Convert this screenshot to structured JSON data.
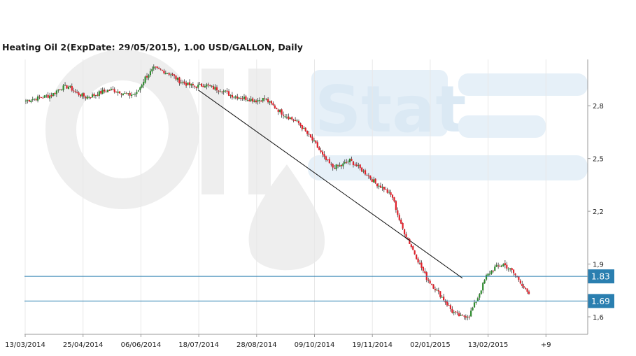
{
  "chart_data": {
    "type": "candlestick",
    "title": "Heating Oil 2(ExpDate: 29/05/2015), 1.00 USD/GALLON, Daily",
    "watermark": "OilStat",
    "colors": {
      "up": "#2e8b2e",
      "down": "#e0202a",
      "levels": "#2a7fb0",
      "level_badge": "#2a7fb0",
      "trendline": "#111111",
      "grid": "#e8e8e8"
    },
    "x_tick_labels": [
      "13/03/2014",
      "25/04/2014",
      "06/06/2014",
      "18/07/2014",
      "28/08/2014",
      "09/10/2014",
      "19/11/2014",
      "02/01/2015",
      "13/02/2015",
      "+9"
    ],
    "y_ticks": [
      1.6,
      1.9,
      2.2,
      2.5,
      2.8
    ],
    "y_tick_labels": [
      "1,6",
      "1,9",
      "2,2",
      "2,5",
      "2,8"
    ],
    "ylim": [
      1.55,
      3.05
    ],
    "horizontal_levels": [
      {
        "value": 1.83,
        "label": "1.83"
      },
      {
        "value": 1.69,
        "label": "1.69"
      }
    ],
    "trendline": {
      "start": {
        "bar_index": 101,
        "value": 2.89
      },
      "end": {
        "bar_index": 256,
        "value": 1.82
      }
    },
    "weekly_close_path": [
      2.83,
      2.84,
      2.85,
      2.86,
      2.9,
      2.91,
      2.87,
      2.85,
      2.86,
      2.88,
      2.89,
      2.88,
      2.86,
      2.87,
      2.96,
      3.01,
      3.0,
      2.98,
      2.94,
      2.92,
      2.91,
      2.92,
      2.9,
      2.89,
      2.86,
      2.85,
      2.84,
      2.83,
      2.84,
      2.8,
      2.76,
      2.73,
      2.7,
      2.64,
      2.58,
      2.5,
      2.45,
      2.46,
      2.49,
      2.45,
      2.41,
      2.36,
      2.33,
      2.28,
      2.12,
      2.02,
      1.92,
      1.82,
      1.76,
      1.7,
      1.63,
      1.6,
      1.61,
      1.71,
      1.83,
      1.88,
      1.9,
      1.86,
      1.8,
      1.72
    ],
    "candles_per_week": 5,
    "candle_seed": 7
  }
}
